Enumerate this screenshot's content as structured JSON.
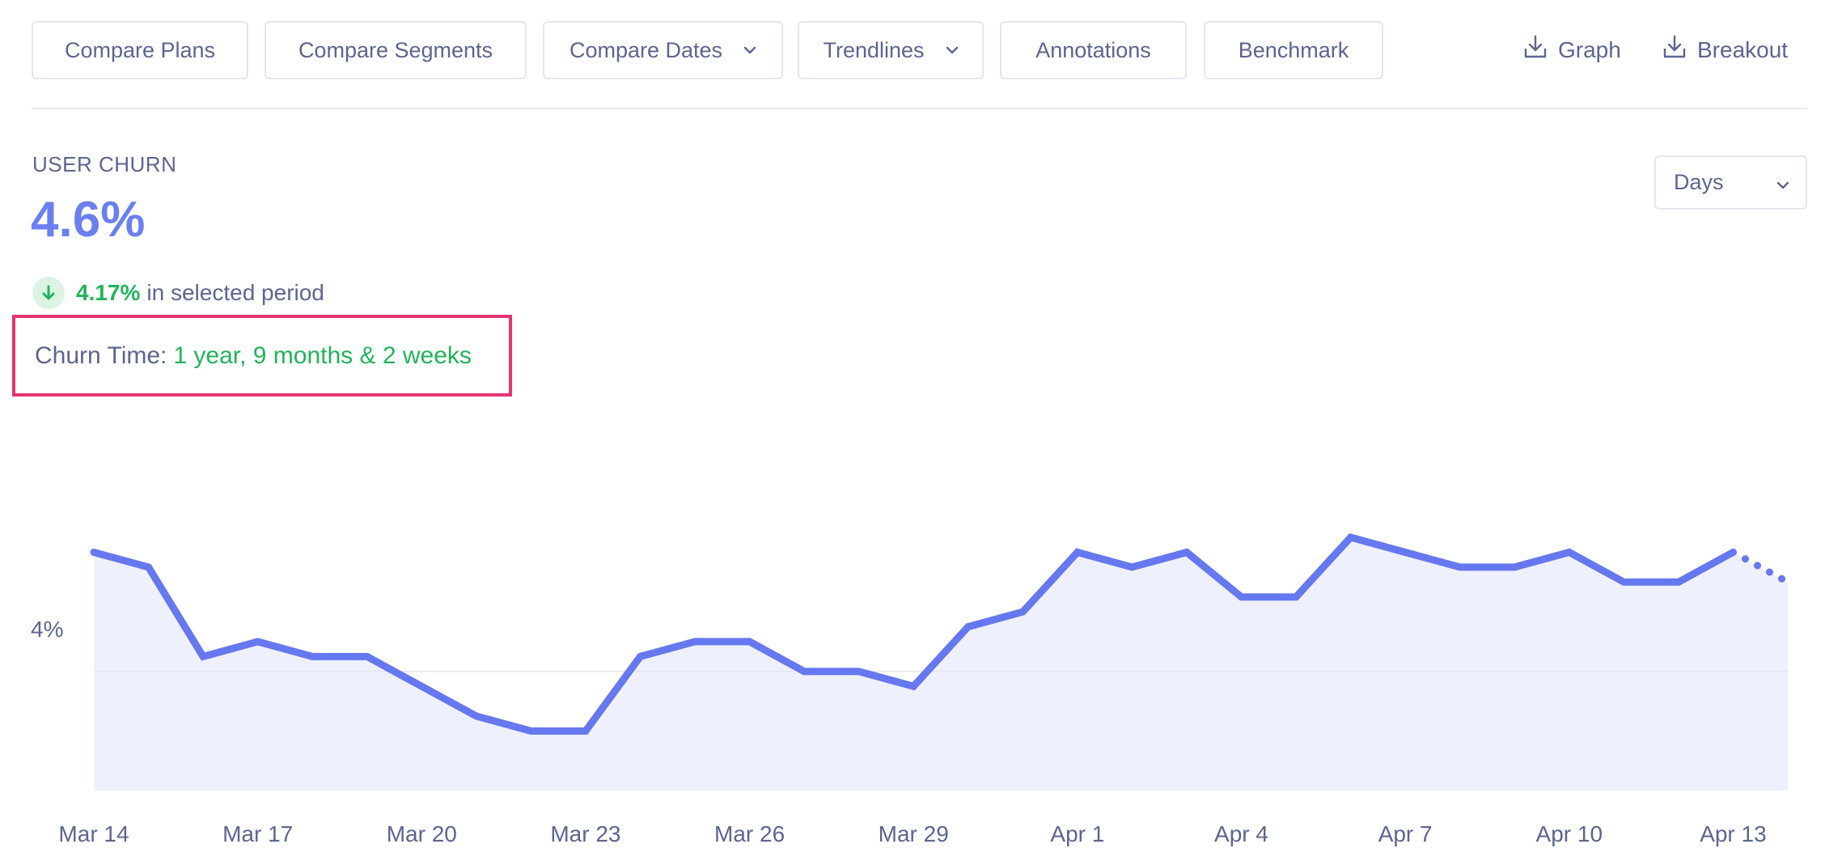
{
  "toolbar": {
    "buttons": [
      {
        "label": "Compare Plans",
        "dropdown": false
      },
      {
        "label": "Compare Segments",
        "dropdown": false
      },
      {
        "label": "Compare Dates",
        "dropdown": true
      },
      {
        "label": "Trendlines",
        "dropdown": true
      },
      {
        "label": "Annotations",
        "dropdown": false
      },
      {
        "label": "Benchmark",
        "dropdown": false
      }
    ],
    "exports": [
      {
        "label": "Graph",
        "icon": "download-icon"
      },
      {
        "label": "Breakout",
        "icon": "download-icon"
      }
    ]
  },
  "metric": {
    "label": "USER CHURN",
    "value": "4.6%",
    "change_value": "4.17%",
    "change_direction": "down",
    "change_text": "in selected period",
    "churn_time_label": "Churn Time:",
    "churn_time_value": "1 year, 9 months & 2 weeks"
  },
  "granularity": {
    "selected": "Days"
  },
  "colors": {
    "accent": "#6b7ff0",
    "line": "#6678ef",
    "area": "#eef0fd",
    "positive": "#22b35a",
    "highlight_border": "#e8336f",
    "text": "#5c6590"
  },
  "chart_data": {
    "type": "area",
    "title": "",
    "xlabel": "",
    "ylabel": "",
    "ytick_label": "4%",
    "ytick_value": 4.0,
    "ylim": [
      3.6,
      4.95
    ],
    "grid": false,
    "x_ticks": [
      "Mar 14",
      "Mar 17",
      "Mar 20",
      "Mar 23",
      "Mar 26",
      "Mar 29",
      "Apr 1",
      "Apr 4",
      "Apr 7",
      "Apr 10",
      "Apr 13"
    ],
    "x": [
      "Mar 14",
      "Mar 15",
      "Mar 16",
      "Mar 17",
      "Mar 18",
      "Mar 19",
      "Mar 20",
      "Mar 21",
      "Mar 22",
      "Mar 23",
      "Mar 24",
      "Mar 25",
      "Mar 26",
      "Mar 27",
      "Mar 28",
      "Mar 29",
      "Mar 30",
      "Mar 31",
      "Apr 1",
      "Apr 2",
      "Apr 3",
      "Apr 4",
      "Apr 5",
      "Apr 6",
      "Apr 7",
      "Apr 8",
      "Apr 9",
      "Apr 10",
      "Apr 11",
      "Apr 12",
      "Apr 13",
      "Apr 14"
    ],
    "series": [
      {
        "values": [
          4.4,
          4.35,
          4.05,
          4.1,
          4.05,
          4.05,
          3.95,
          3.85,
          3.8,
          3.8,
          4.05,
          4.1,
          4.1,
          4.0,
          4.0,
          3.95,
          4.15,
          4.2,
          4.4,
          4.35,
          4.4,
          4.25,
          4.25,
          4.45,
          4.4,
          4.35,
          4.35,
          4.4,
          4.3,
          4.3,
          4.4,
          4.3
        ]
      }
    ],
    "incomplete_last_point": true
  }
}
